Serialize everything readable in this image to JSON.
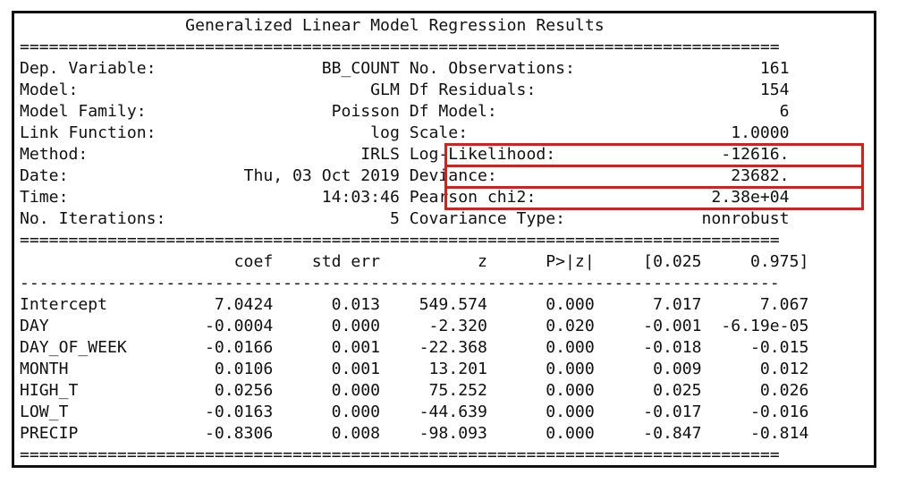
{
  "title": "Generalized Linear Model Regression Results",
  "rule_double": "==============================================================================",
  "rule_single": "------------------------------------------------------------------------------",
  "left_stats": [
    {
      "label": "Dep. Variable:",
      "value": "BB_COUNT"
    },
    {
      "label": "Model:",
      "value": "GLM"
    },
    {
      "label": "Model Family:",
      "value": "Poisson"
    },
    {
      "label": "Link Function:",
      "value": "log"
    },
    {
      "label": "Method:",
      "value": "IRLS"
    },
    {
      "label": "Date:",
      "value": "Thu, 03 Oct 2019"
    },
    {
      "label": "Time:",
      "value": "14:03:46"
    },
    {
      "label": "No. Iterations:",
      "value": "5"
    }
  ],
  "right_stats": [
    {
      "label": "No. Observations:",
      "value": "161"
    },
    {
      "label": "Df Residuals:",
      "value": "154"
    },
    {
      "label": "Df Model:",
      "value": "6"
    },
    {
      "label": "Scale:",
      "value": "1.0000"
    },
    {
      "label": "Log-Likelihood:",
      "value": "-12616."
    },
    {
      "label": "Deviance:",
      "value": "23682."
    },
    {
      "label": "Pearson chi2:",
      "value": "2.38e+04"
    },
    {
      "label": "Covariance Type:",
      "value": "nonrobust"
    }
  ],
  "highlighted_stats": [
    "Log-Likelihood:",
    "Deviance:",
    "Pearson chi2:"
  ],
  "highlight_color": "#e01b1b",
  "coef_headers": [
    "coef",
    "std err",
    "z",
    "P>|z|",
    "[0.025",
    "0.975]"
  ],
  "coef_rows": [
    {
      "name": "Intercept",
      "values": [
        "7.0424",
        "0.013",
        "549.574",
        "0.000",
        "7.017",
        "7.067"
      ]
    },
    {
      "name": "DAY",
      "values": [
        "-0.0004",
        "0.000",
        "-2.320",
        "0.020",
        "-0.001",
        "-6.19e-05"
      ]
    },
    {
      "name": "DAY_OF_WEEK",
      "values": [
        "-0.0166",
        "0.001",
        "-22.368",
        "0.000",
        "-0.018",
        "-0.015"
      ]
    },
    {
      "name": "MONTH",
      "values": [
        "0.0106",
        "0.001",
        "13.201",
        "0.000",
        "0.009",
        "0.012"
      ]
    },
    {
      "name": "HIGH_T",
      "values": [
        "0.0256",
        "0.000",
        "75.252",
        "0.000",
        "0.025",
        "0.026"
      ]
    },
    {
      "name": "LOW_T",
      "values": [
        "-0.0163",
        "0.000",
        "-44.639",
        "0.000",
        "-0.017",
        "-0.016"
      ]
    },
    {
      "name": "PRECIP",
      "values": [
        "-0.8306",
        "0.008",
        "-98.093",
        "0.000",
        "-0.847",
        "-0.814"
      ]
    }
  ]
}
